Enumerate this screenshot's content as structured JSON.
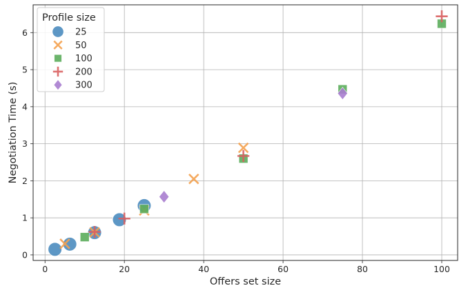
{
  "chart_data": {
    "type": "scatter",
    "xlabel": "Offers set size",
    "ylabel": "Negotiation Time (s)",
    "xlim": [
      -3,
      104
    ],
    "ylim": [
      -0.15,
      6.75
    ],
    "xticks": [
      0,
      20,
      40,
      60,
      80,
      100
    ],
    "yticks": [
      0,
      1,
      2,
      3,
      4,
      5,
      6
    ],
    "grid": true,
    "legend": {
      "title": "Profile size",
      "placement": "top-left"
    },
    "series": [
      {
        "name": "25",
        "marker": "circle",
        "color": "#4c8cbf",
        "points": [
          [
            2.5,
            0.15
          ],
          [
            6.25,
            0.29
          ],
          [
            12.5,
            0.6
          ],
          [
            18.75,
            0.95
          ],
          [
            25,
            1.33
          ]
        ]
      },
      {
        "name": "50",
        "marker": "x",
        "color": "#f4a14e",
        "points": [
          [
            5,
            0.3
          ],
          [
            12.5,
            0.61
          ],
          [
            25,
            1.2
          ],
          [
            37.5,
            2.05
          ],
          [
            50,
            2.89
          ]
        ]
      },
      {
        "name": "100",
        "marker": "square",
        "color": "#5dae5d",
        "points": [
          [
            10,
            0.48
          ],
          [
            25,
            1.24
          ],
          [
            50,
            2.6
          ],
          [
            75,
            4.47
          ],
          [
            100,
            6.24
          ]
        ]
      },
      {
        "name": "200",
        "marker": "plus",
        "color": "#d95f5f",
        "points": [
          [
            12.5,
            0.62
          ],
          [
            20,
            0.98
          ],
          [
            50,
            2.67
          ],
          [
            100,
            6.44
          ]
        ]
      },
      {
        "name": "300",
        "marker": "diamond",
        "color": "#a97ed0",
        "points": [
          [
            30,
            1.57
          ],
          [
            75,
            4.36
          ]
        ]
      }
    ]
  }
}
